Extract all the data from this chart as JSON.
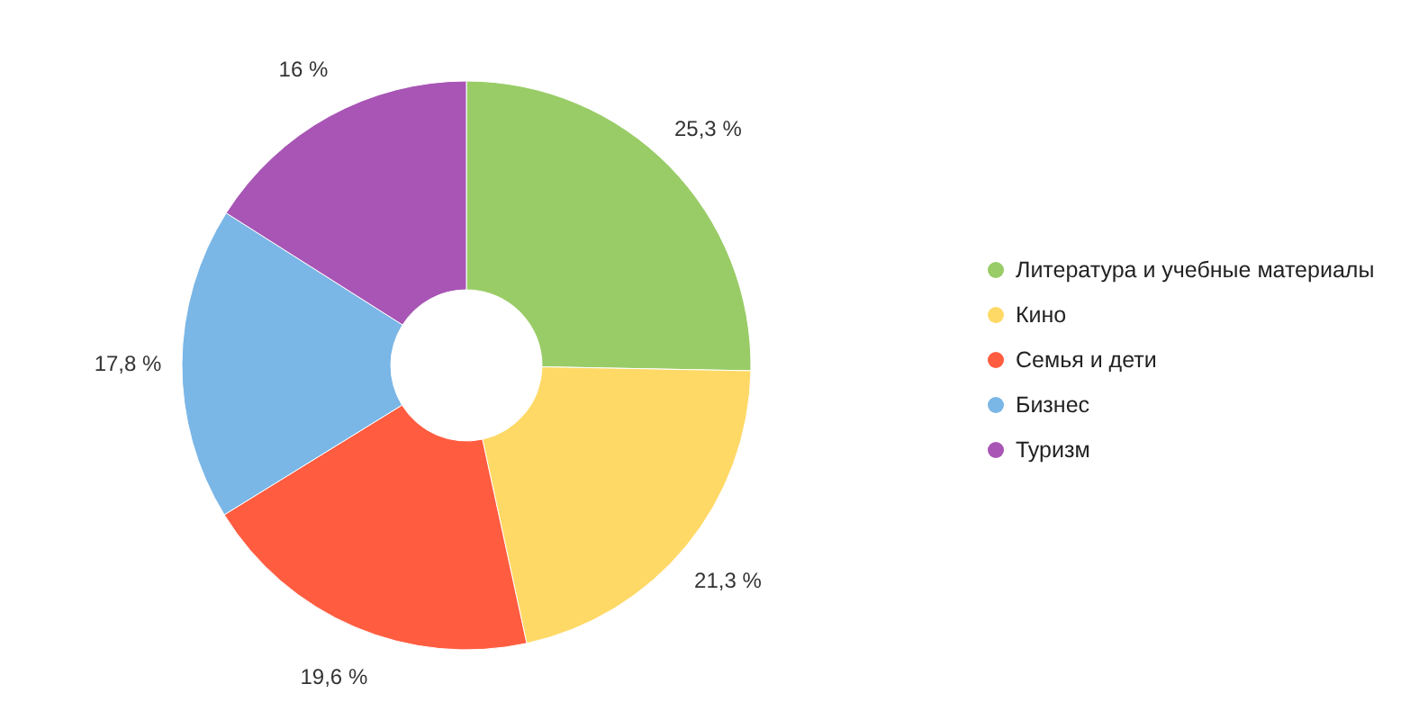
{
  "chart_data": {
    "type": "donut",
    "categories": [
      "Литература и учебные материалы",
      "Кино",
      "Семья и дети",
      "Бизнес",
      "Туризм"
    ],
    "values": [
      25.3,
      21.3,
      19.6,
      17.8,
      16
    ],
    "value_labels": [
      "25,3 %",
      "21,3 %",
      "19,6 %",
      "17,8 %",
      "16 %"
    ],
    "colors": [
      "#99cc66",
      "#ffd966",
      "#ff5c40",
      "#7ab6e6",
      "#a855b5"
    ],
    "legend": "right"
  }
}
